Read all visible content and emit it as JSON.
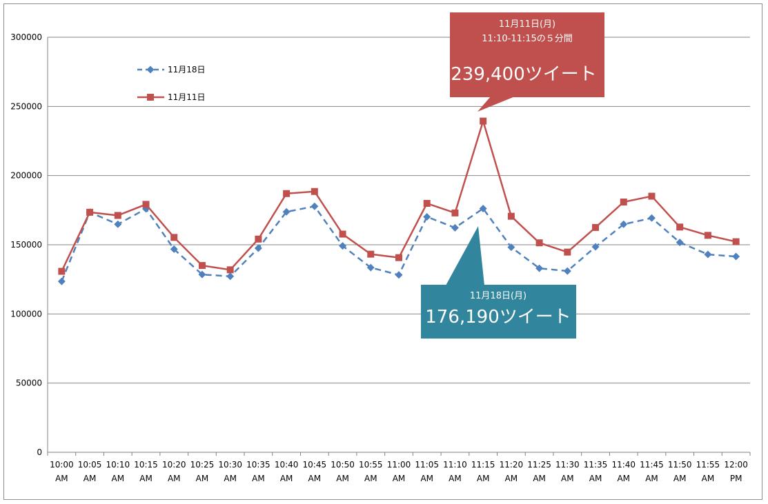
{
  "chart_data": {
    "type": "line",
    "categories": [
      "10:00\nAM",
      "10:05\nAM",
      "10:10\nAM",
      "10:15\nAM",
      "10:20\nAM",
      "10:25\nAM",
      "10:30\nAM",
      "10:35\nAM",
      "10:40\nAM",
      "10:45\nAM",
      "10:50\nAM",
      "10:55\nAM",
      "11:00\nAM",
      "11:05\nAM",
      "11:10\nAM",
      "11:15\nAM",
      "11:20\nAM",
      "11:25\nAM",
      "11:30\nAM",
      "11:35\nAM",
      "11:40\nAM",
      "11:45\nAM",
      "11:50\nAM",
      "11:55\nAM",
      "12:00\nPM"
    ],
    "ylim": [
      0,
      300000
    ],
    "yticks": [
      0,
      50000,
      100000,
      150000,
      200000,
      250000,
      300000
    ],
    "grid": true,
    "legend_position": "top-left",
    "series": [
      {
        "name": "11月18日",
        "color": "#4f81bd",
        "line_style": "dashed",
        "marker": "diamond",
        "values": [
          123500,
          173500,
          164800,
          176000,
          146800,
          128500,
          127200,
          147500,
          173800,
          177800,
          149200,
          133500,
          128200,
          170200,
          162300,
          176190,
          148200,
          133000,
          131000,
          148500,
          164800,
          169300,
          151700,
          143000,
          141500
        ]
      },
      {
        "name": "11月11日",
        "color": "#c0504d",
        "line_style": "solid",
        "marker": "square",
        "values": [
          130800,
          173500,
          171200,
          179200,
          155300,
          135000,
          131900,
          154100,
          187000,
          188500,
          157700,
          143200,
          140700,
          179900,
          173000,
          239400,
          170600,
          151400,
          144700,
          162500,
          180900,
          185100,
          162800,
          156800,
          152200
        ]
      }
    ],
    "annotations": [
      {
        "name": "red-callout",
        "color": "#c0504d",
        "line1": "11月11日(月)",
        "line2": "11:10-11:15の５分間",
        "value_text": "239,400ツイート"
      },
      {
        "name": "teal-callout",
        "color": "#31859c",
        "line1": "11月18日(月)",
        "value_text": "176,190ツイート"
      }
    ]
  }
}
